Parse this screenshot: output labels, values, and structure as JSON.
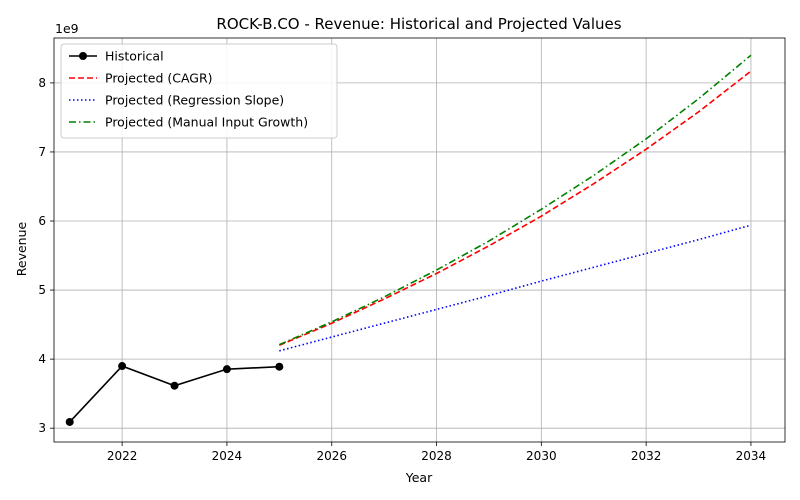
{
  "chart_data": {
    "type": "line",
    "title": "ROCK-B.CO - Revenue: Historical and Projected Values",
    "xlabel": "Year",
    "ylabel": "Revenue",
    "y_multiplier_label": "1e9",
    "y_scale": 1000000000,
    "xlim": [
      2020.7,
      2034.65
    ],
    "ylim": [
      2800000000,
      8650000000
    ],
    "x_ticks": [
      2022,
      2024,
      2026,
      2028,
      2030,
      2032,
      2034
    ],
    "y_ticks": [
      3000000000,
      4000000000,
      5000000000,
      6000000000,
      7000000000,
      8000000000
    ],
    "y_tick_labels": [
      "3",
      "4",
      "5",
      "6",
      "7",
      "8"
    ],
    "grid": true,
    "legend_position": "top-left",
    "series": [
      {
        "name": "Historical",
        "color": "#000000",
        "line_style": "solid",
        "marker": "circle",
        "x": [
          2021,
          2022,
          2023,
          2024,
          2025
        ],
        "y": [
          3090000000,
          3900000000,
          3615000000,
          3855000000,
          3890000000
        ]
      },
      {
        "name": "Projected (CAGR)",
        "color": "#ff0000",
        "line_style": "dashed",
        "marker": "none",
        "x": [
          2025,
          2026,
          2027,
          2028,
          2029,
          2030,
          2031,
          2032,
          2033,
          2034
        ],
        "y": [
          4200000000,
          4520000000,
          4870000000,
          5240000000,
          5640000000,
          6070000000,
          6540000000,
          7040000000,
          7580000000,
          8170000000
        ]
      },
      {
        "name": "Projected (Regression Slope)",
        "color": "#0000ff",
        "line_style": "dotted",
        "marker": "none",
        "x": [
          2025,
          2026,
          2027,
          2028,
          2029,
          2030,
          2031,
          2032,
          2033,
          2034
        ],
        "y": [
          4120000000,
          4320000000,
          4520000000,
          4720000000,
          4920000000,
          5130000000,
          5330000000,
          5530000000,
          5730000000,
          5940000000
        ]
      },
      {
        "name": "Projected (Manual Input Growth)",
        "color": "#008000",
        "line_style": "dashdot",
        "marker": "none",
        "x": [
          2025,
          2026,
          2027,
          2028,
          2029,
          2030,
          2031,
          2032,
          2033,
          2034
        ],
        "y": [
          4210000000,
          4540000000,
          4900000000,
          5290000000,
          5710000000,
          6170000000,
          6660000000,
          7190000000,
          7770000000,
          8400000000
        ]
      }
    ]
  }
}
